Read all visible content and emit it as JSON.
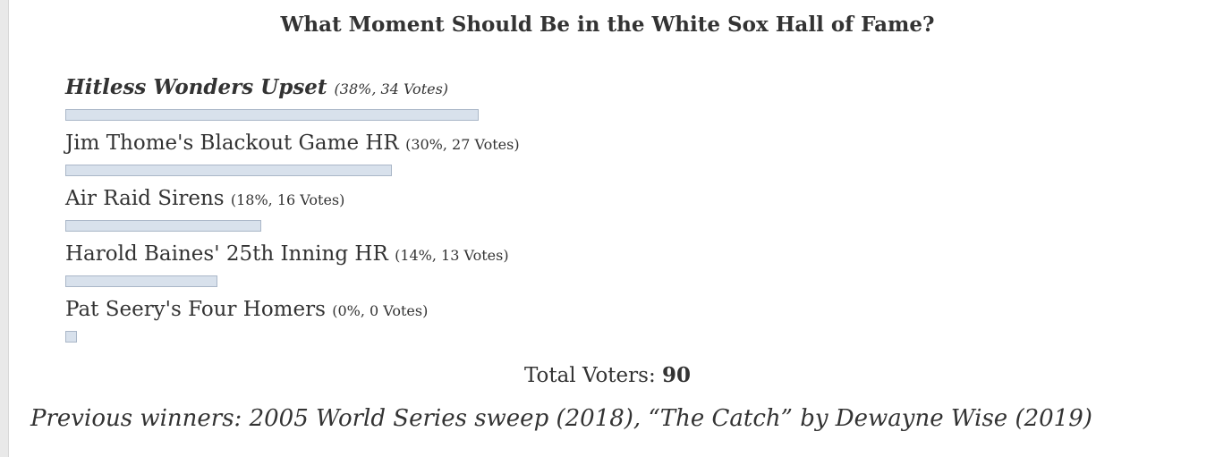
{
  "poll": {
    "title": "What Moment Should Be in the White Sox Hall of Fame?",
    "total_label": "Total Voters:",
    "total_voters": "90",
    "previous_winners": "Previous winners: 2005 World Series sweep (2018), “The Catch” by Dewayne Wise (2019)"
  },
  "colors": {
    "bar_fill": "#d8e1ec",
    "bar_border": "#aab7c8",
    "text": "#333333"
  },
  "chart_data": {
    "type": "bar",
    "orientation": "horizontal",
    "title": "What Moment Should Be in the White Sox Hall of Fame?",
    "categories": [
      "Hitless Wonders Upset",
      "Jim Thome's Blackout Game HR",
      "Air Raid Sirens",
      "Harold Baines' 25th Inning HR",
      "Pat Seery's Four Homers"
    ],
    "percent": [
      38,
      30,
      18,
      14,
      0
    ],
    "votes": [
      34,
      27,
      16,
      13,
      0
    ],
    "stat_labels": [
      "(38%, 34 Votes)",
      "(30%, 27 Votes)",
      "(18%, 16 Votes)",
      "(14%, 13 Votes)",
      "(0%, 0 Votes)"
    ],
    "winner_index": 0
  }
}
